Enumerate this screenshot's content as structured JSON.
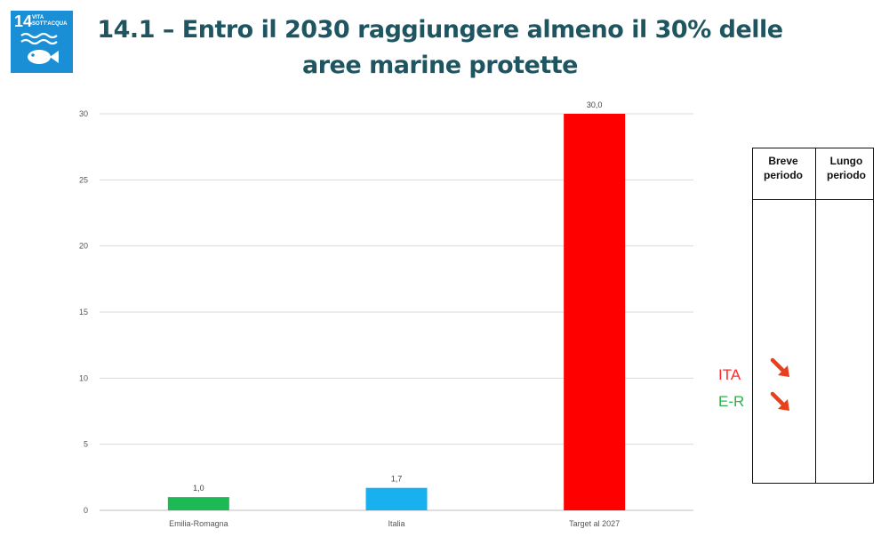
{
  "badge": {
    "number": "14",
    "name": "VITA\nSOTT'ACQUA",
    "color": "#1a8fd6",
    "icon": "fish-waves-icon"
  },
  "title_line1": "14.1 – Entro il 2030 raggiungere almeno il 30% delle",
  "title_line2": "aree marine protette",
  "chart_data": {
    "type": "bar",
    "categories": [
      "Emilia-Romagna",
      "Italia",
      "Target al 2027"
    ],
    "values": [
      1.0,
      1.7,
      30.0
    ],
    "data_labels": [
      "1,0",
      "1,7",
      "30,0"
    ],
    "colors": [
      "#1db954",
      "#19b0ef",
      "#ff0000"
    ],
    "ylim": [
      0,
      30
    ],
    "yticks": [
      0,
      5,
      10,
      15,
      20,
      25,
      30
    ],
    "grid": true,
    "title": "",
    "xlabel": "",
    "ylabel": ""
  },
  "trend_table": {
    "col1": "Breve\nperiodo",
    "col2": "Lungo\nperiodo",
    "rows": [
      {
        "label": "ITA",
        "color": "#ff2b2b",
        "short_term": "arrow-down-right-icon"
      },
      {
        "label": "E-R",
        "color": "#2fb24c",
        "short_term": "arrow-down-right-icon"
      }
    ],
    "arrow_color": "#e8401c"
  }
}
